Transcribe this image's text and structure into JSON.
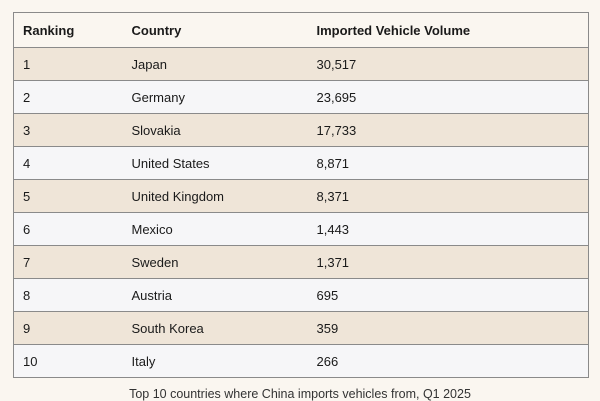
{
  "table": {
    "headers": {
      "ranking": "Ranking",
      "country": "Country",
      "volume": "Imported Vehicle Volume"
    },
    "rows": [
      {
        "ranking": "1",
        "country": "Japan",
        "volume": "30,517"
      },
      {
        "ranking": "2",
        "country": "Germany",
        "volume": "23,695"
      },
      {
        "ranking": "3",
        "country": "Slovakia",
        "volume": "17,733"
      },
      {
        "ranking": "4",
        "country": "United States",
        "volume": "8,871"
      },
      {
        "ranking": "5",
        "country": "United Kingdom",
        "volume": "8,371"
      },
      {
        "ranking": "6",
        "country": "Mexico",
        "volume": "1,443"
      },
      {
        "ranking": "7",
        "country": "Sweden",
        "volume": "1,371"
      },
      {
        "ranking": "8",
        "country": "Austria",
        "volume": "695"
      },
      {
        "ranking": "9",
        "country": "South Korea",
        "volume": "359"
      },
      {
        "ranking": "10",
        "country": "Italy",
        "volume": "266"
      }
    ]
  },
  "caption": "Top 10 countries where China imports vehicles from, Q1 2025",
  "colors": {
    "page_background": "#faf6f0",
    "row_tan": "#efe5d8",
    "row_gray": "#f6f6f8",
    "border": "#8a8a8a"
  }
}
